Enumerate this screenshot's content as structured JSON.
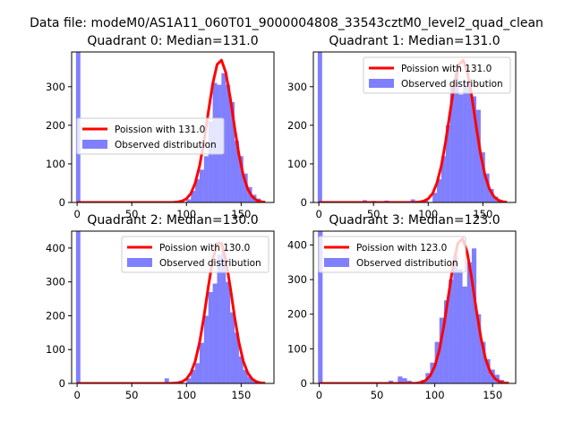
{
  "figure": {
    "title": "Data file: modeM0/AS1A11_060T01_9000004808_33543cztM0_level2_quad_clean"
  },
  "chart_data": [
    {
      "type": "histogram",
      "title": "Quadrant 0: Median=131.0",
      "xlim": [
        -5,
        180
      ],
      "ylim": [
        0,
        390
      ],
      "xticks": [
        0,
        50,
        100,
        150
      ],
      "yticks": [
        0,
        100,
        200,
        300
      ],
      "legend_position": "center-left",
      "bin_width": 4,
      "series": [
        {
          "name": "Poission with 131.0",
          "type": "line",
          "color": "#ff0000",
          "mean": 131.0,
          "peak": 370,
          "sigma": 11.5
        },
        {
          "name": "Observed distribution",
          "type": "bars",
          "color": "#0000ff",
          "bins": [
            [
              -1,
              3,
              390
            ],
            [
              76,
              80,
              3
            ],
            [
              100,
              104,
              8
            ],
            [
              104,
              108,
              30
            ],
            [
              108,
              112,
              60
            ],
            [
              112,
              116,
              85
            ],
            [
              116,
              120,
              120
            ],
            [
              120,
              124,
              210
            ],
            [
              124,
              128,
              310
            ],
            [
              128,
              132,
              305
            ],
            [
              132,
              136,
              335
            ],
            [
              136,
              140,
              305
            ],
            [
              140,
              144,
              260
            ],
            [
              144,
              148,
              160
            ],
            [
              148,
              152,
              120
            ],
            [
              152,
              156,
              75
            ],
            [
              156,
              160,
              40
            ],
            [
              160,
              164,
              20
            ],
            [
              164,
              168,
              10
            ],
            [
              168,
              172,
              4
            ]
          ]
        }
      ]
    },
    {
      "type": "histogram",
      "title": "Quadrant 1: Median=131.0",
      "xlim": [
        -5,
        180
      ],
      "ylim": [
        0,
        390
      ],
      "xticks": [
        0,
        50,
        100,
        150
      ],
      "yticks": [
        0,
        100,
        200,
        300
      ],
      "legend_position": "top-right",
      "bin_width": 4,
      "series": [
        {
          "name": "Poission with 131.0",
          "type": "line",
          "color": "#ff0000",
          "mean": 131.0,
          "peak": 370,
          "sigma": 11.5
        },
        {
          "name": "Observed distribution",
          "type": "bars",
          "color": "#0000ff",
          "bins": [
            [
              -1,
              3,
              390
            ],
            [
              40,
              44,
              6
            ],
            [
              48,
              52,
              4
            ],
            [
              60,
              64,
              5
            ],
            [
              76,
              80,
              3
            ],
            [
              84,
              88,
              8
            ],
            [
              96,
              100,
              6
            ],
            [
              104,
              108,
              25
            ],
            [
              108,
              112,
              60
            ],
            [
              112,
              116,
              120
            ],
            [
              116,
              120,
              200
            ],
            [
              120,
              124,
              300
            ],
            [
              124,
              128,
              340
            ],
            [
              128,
              132,
              280
            ],
            [
              132,
              136,
              310
            ],
            [
              136,
              140,
              300
            ],
            [
              140,
              144,
              275
            ],
            [
              144,
              148,
              240
            ],
            [
              148,
              152,
              130
            ],
            [
              152,
              156,
              75
            ],
            [
              156,
              160,
              35
            ],
            [
              160,
              164,
              15
            ],
            [
              164,
              168,
              5
            ]
          ]
        }
      ]
    },
    {
      "type": "histogram",
      "title": "Quadrant 2: Median=130.0",
      "xlim": [
        -5,
        180
      ],
      "ylim": [
        0,
        450
      ],
      "xticks": [
        0,
        50,
        100,
        150
      ],
      "yticks": [
        0,
        100,
        200,
        300,
        400
      ],
      "legend_position": "top-right",
      "bin_width": 4,
      "series": [
        {
          "name": "Poission with 130.0",
          "type": "line",
          "color": "#ff0000",
          "mean": 130.0,
          "peak": 420,
          "sigma": 11.4
        },
        {
          "name": "Observed distribution",
          "type": "bars",
          "color": "#0000ff",
          "bins": [
            [
              -1,
              3,
              450
            ],
            [
              80,
              84,
              15
            ],
            [
              100,
              104,
              15
            ],
            [
              104,
              108,
              40
            ],
            [
              108,
              112,
              60
            ],
            [
              112,
              116,
              120
            ],
            [
              116,
              120,
              200
            ],
            [
              120,
              124,
              270
            ],
            [
              124,
              128,
              295
            ],
            [
              128,
              132,
              380
            ],
            [
              132,
              136,
              400
            ],
            [
              136,
              140,
              300
            ],
            [
              140,
              144,
              210
            ],
            [
              144,
              148,
              150
            ],
            [
              148,
              152,
              80
            ],
            [
              152,
              156,
              40
            ],
            [
              156,
              160,
              20
            ],
            [
              160,
              164,
              10
            ],
            [
              164,
              168,
              5
            ]
          ]
        }
      ]
    },
    {
      "type": "histogram",
      "title": "Quadrant 3: Median=123.0",
      "xlim": [
        -5,
        170
      ],
      "ylim": [
        0,
        440
      ],
      "xticks": [
        0,
        50,
        100,
        150
      ],
      "yticks": [
        0,
        100,
        200,
        300,
        400
      ],
      "legend_position": "top-left",
      "bin_width": 4,
      "series": [
        {
          "name": "Poission with 123.0",
          "type": "line",
          "color": "#ff0000",
          "mean": 123.0,
          "peak": 420,
          "sigma": 11.1
        },
        {
          "name": "Observed distribution",
          "type": "bars",
          "color": "#0000ff",
          "bins": [
            [
              -1,
              3,
              440
            ],
            [
              60,
              64,
              8
            ],
            [
              68,
              72,
              20
            ],
            [
              72,
              76,
              15
            ],
            [
              76,
              80,
              8
            ],
            [
              88,
              92,
              10
            ],
            [
              92,
              96,
              30
            ],
            [
              96,
              100,
              60
            ],
            [
              100,
              104,
              120
            ],
            [
              104,
              108,
              190
            ],
            [
              108,
              112,
              240
            ],
            [
              112,
              116,
              300
            ],
            [
              116,
              120,
              370
            ],
            [
              120,
              124,
              330
            ],
            [
              124,
              128,
              280
            ],
            [
              128,
              132,
              350
            ],
            [
              132,
              136,
              390
            ],
            [
              136,
              140,
              200
            ],
            [
              140,
              144,
              120
            ],
            [
              144,
              148,
              70
            ],
            [
              148,
              152,
              40
            ],
            [
              152,
              156,
              25
            ],
            [
              156,
              160,
              10
            ]
          ]
        }
      ]
    }
  ]
}
